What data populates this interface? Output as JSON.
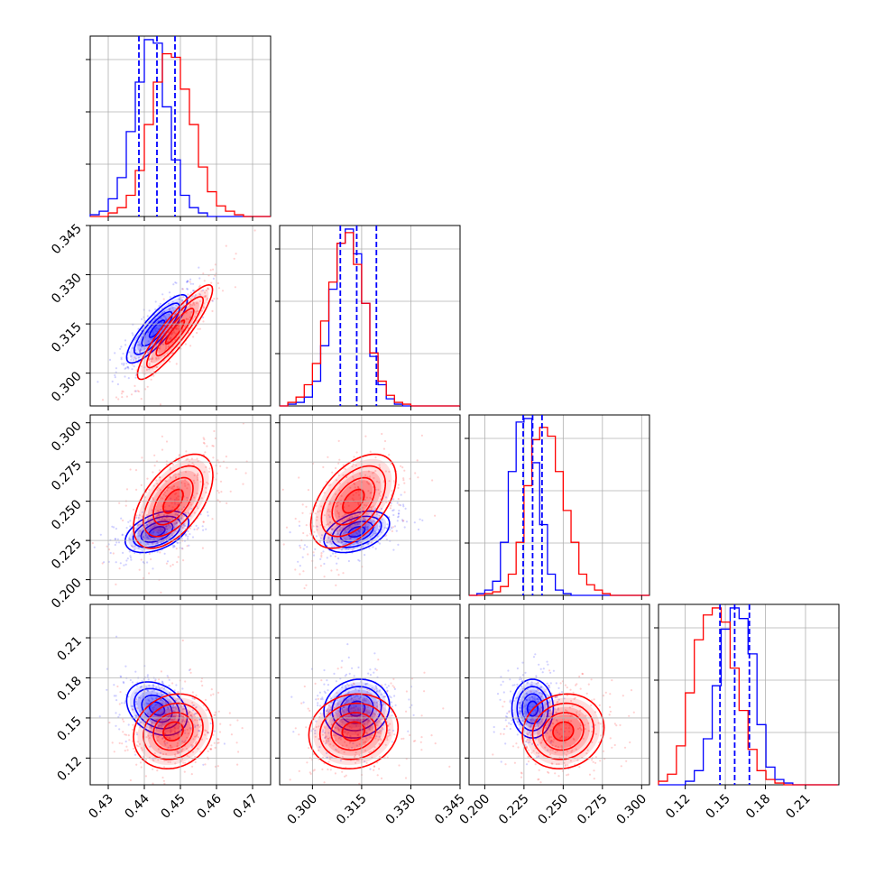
{
  "chart_data": {
    "type": "corner",
    "series": [
      {
        "name": "",
        "color": "#0000ff"
      },
      {
        "name": "",
        "color": "#ff0000"
      }
    ],
    "grid": true,
    "params": [
      {
        "range": [
          0.425,
          0.475
        ],
        "ticks": [
          0.43,
          0.44,
          0.45,
          0.46,
          0.47
        ],
        "tick_labels": [
          "0.43",
          "0.44",
          "0.45",
          "0.46",
          "0.47"
        ]
      },
      {
        "range": [
          0.29,
          0.345
        ],
        "ticks": [
          0.3,
          0.315,
          0.33,
          0.345
        ],
        "tick_labels": [
          "0.300",
          "0.315",
          "0.330",
          "0.345"
        ]
      },
      {
        "range": [
          0.19,
          0.305
        ],
        "ticks": [
          0.2,
          0.225,
          0.25,
          0.275,
          0.3
        ],
        "tick_labels": [
          "0.200",
          "0.225",
          "0.250",
          "0.275",
          "0.300"
        ]
      },
      {
        "range": [
          0.1,
          0.235
        ],
        "ticks": [
          0.12,
          0.15,
          0.18,
          0.21
        ],
        "tick_labels": [
          "0.12",
          "0.15",
          "0.18",
          "0.21"
        ]
      }
    ],
    "marginals": [
      {
        "edges_start": 0.425,
        "bin_width": 0.0025,
        "blue": [
          1,
          3,
          10,
          22,
          48,
          76,
          100,
          98,
          62,
          32,
          12,
          5,
          2,
          0,
          0,
          0,
          0,
          0,
          0,
          0
        ],
        "red": [
          0,
          0,
          2,
          5,
          12,
          26,
          52,
          76,
          92,
          90,
          72,
          52,
          28,
          14,
          6,
          3,
          1,
          0,
          0,
          0
        ],
        "quantiles": [
          0.4385,
          0.4435,
          0.4485
        ]
      },
      {
        "edges_start": 0.29,
        "bin_width": 0.0025,
        "blue": [
          0,
          1,
          2,
          5,
          14,
          34,
          66,
          92,
          100,
          86,
          58,
          28,
          12,
          4,
          1,
          0,
          0,
          0,
          0,
          0,
          0,
          0
        ],
        "red": [
          0,
          2,
          5,
          12,
          24,
          48,
          70,
          92,
          98,
          80,
          58,
          30,
          14,
          6,
          2,
          1,
          0,
          0,
          0,
          0,
          0,
          0
        ],
        "quantiles": [
          0.3085,
          0.3135,
          0.3195
        ]
      },
      {
        "edges_start": 0.19,
        "bin_width": 0.005,
        "blue": [
          0,
          1,
          3,
          8,
          30,
          70,
          98,
          100,
          75,
          40,
          12,
          3,
          1,
          0,
          0,
          0,
          0,
          0,
          0,
          0,
          0,
          0,
          0
        ],
        "red": [
          0,
          0,
          1,
          2,
          5,
          12,
          30,
          62,
          88,
          95,
          90,
          70,
          48,
          30,
          12,
          6,
          3,
          1,
          0,
          0,
          0,
          0,
          0
        ],
        "quantiles": [
          0.2245,
          0.2305,
          0.2365
        ]
      },
      {
        "edges_start": 0.1,
        "bin_width": 0.0067,
        "blue": [
          0,
          0,
          0,
          2,
          8,
          26,
          56,
          88,
          100,
          94,
          74,
          34,
          10,
          3,
          1,
          0,
          0,
          0,
          0,
          0
        ],
        "red": [
          2,
          6,
          22,
          52,
          82,
          96,
          100,
          92,
          66,
          42,
          20,
          8,
          3,
          1,
          0,
          0,
          0,
          0,
          0,
          0
        ],
        "quantiles": [
          0.146,
          0.157,
          0.168
        ]
      }
    ],
    "joint": [
      {
        "x": 0,
        "y": 1,
        "blue": {
          "mean": [
            0.4435,
            0.3135
          ],
          "sd": [
            0.0042,
            0.0052
          ],
          "rho": 0.84
        },
        "red": {
          "mean": [
            0.4485,
            0.3125
          ],
          "sd": [
            0.0052,
            0.0072
          ],
          "rho": 0.9
        }
      },
      {
        "x": 0,
        "y": 2,
        "blue": {
          "mean": [
            0.4435,
            0.2305
          ],
          "sd": [
            0.0044,
            0.0066
          ],
          "rho": 0.45
        },
        "red": {
          "mean": [
            0.448,
            0.25
          ],
          "sd": [
            0.0055,
            0.015
          ],
          "rho": 0.55
        }
      },
      {
        "x": 1,
        "y": 2,
        "blue": {
          "mean": [
            0.3135,
            0.2305
          ],
          "sd": [
            0.005,
            0.0066
          ],
          "rho": 0.4
        },
        "red": {
          "mean": [
            0.3125,
            0.25
          ],
          "sd": [
            0.0065,
            0.015
          ],
          "rho": 0.5
        }
      },
      {
        "x": 0,
        "y": 3,
        "blue": {
          "mean": [
            0.4435,
            0.157
          ],
          "sd": [
            0.0042,
            0.01
          ],
          "rho": -0.3
        },
        "red": {
          "mean": [
            0.448,
            0.14
          ],
          "sd": [
            0.0055,
            0.014
          ],
          "rho": 0.15
        }
      },
      {
        "x": 1,
        "y": 3,
        "blue": {
          "mean": [
            0.3135,
            0.157
          ],
          "sd": [
            0.005,
            0.011
          ],
          "rho": 0.1
        },
        "red": {
          "mean": [
            0.3125,
            0.14
          ],
          "sd": [
            0.0068,
            0.014
          ],
          "rho": 0.1
        }
      },
      {
        "x": 2,
        "y": 3,
        "blue": {
          "mean": [
            0.2305,
            0.157
          ],
          "sd": [
            0.0066,
            0.011
          ],
          "rho": 0.0
        },
        "red": {
          "mean": [
            0.25,
            0.14
          ],
          "sd": [
            0.013,
            0.014
          ],
          "rho": 0.1
        }
      }
    ]
  }
}
